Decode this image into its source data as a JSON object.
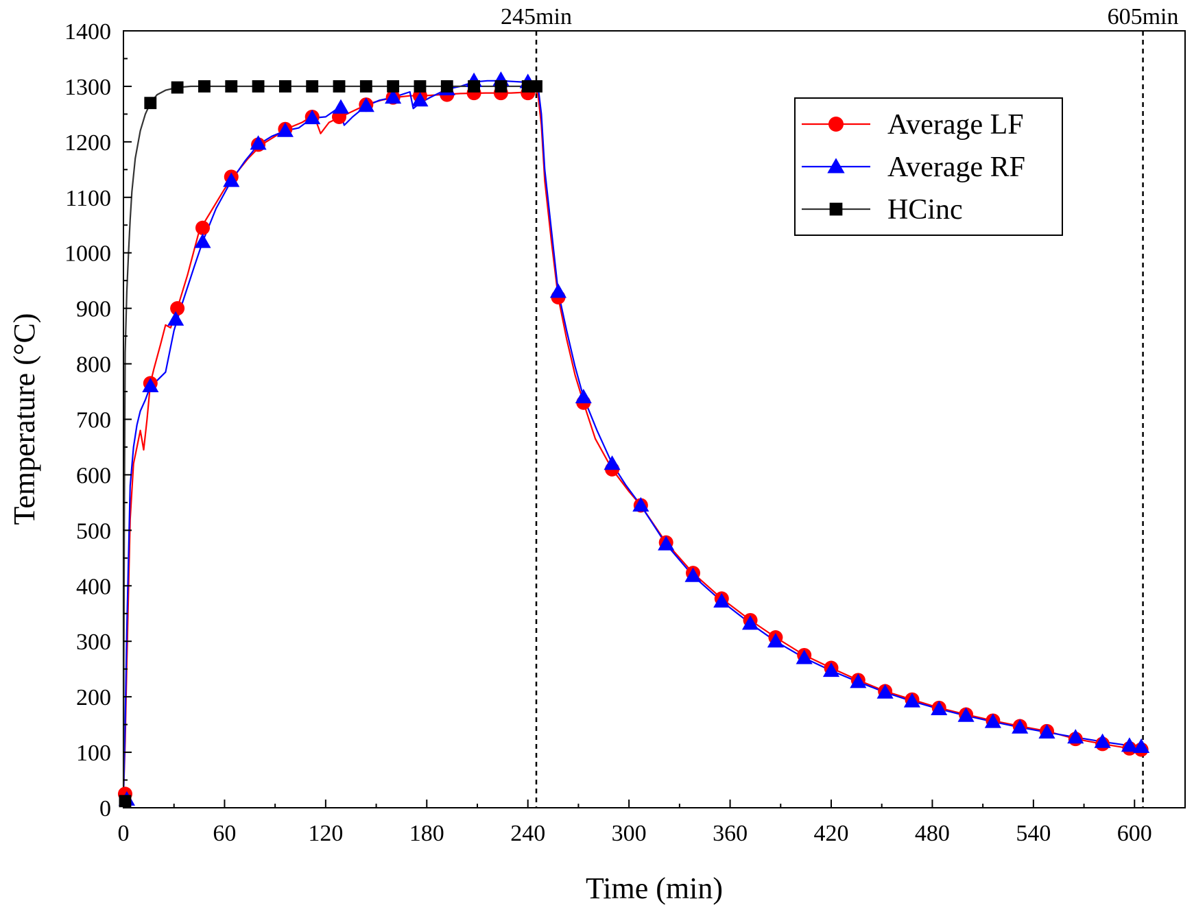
{
  "chart_data": {
    "type": "line",
    "title": "",
    "xlabel": "Time (min)",
    "ylabel": "Temperature (°C)",
    "xlim": [
      0,
      630
    ],
    "ylim": [
      0,
      1400
    ],
    "xticks": [
      0,
      60,
      120,
      180,
      240,
      300,
      360,
      420,
      480,
      540,
      600
    ],
    "yticks": [
      0,
      100,
      200,
      300,
      400,
      500,
      600,
      700,
      800,
      900,
      1000,
      1100,
      1200,
      1300,
      1400
    ],
    "grid": false,
    "legend_position": "top-right",
    "vlines": [
      {
        "x": 245,
        "label": "245min"
      },
      {
        "x": 605,
        "label": "605min"
      }
    ],
    "series": [
      {
        "name": "Average LF",
        "color": "#ff0000",
        "marker": "circle",
        "line": [
          [
            0,
            20
          ],
          [
            1,
            120
          ],
          [
            2,
            260
          ],
          [
            4,
            520
          ],
          [
            6,
            620
          ],
          [
            8,
            650
          ],
          [
            10,
            680
          ],
          [
            12,
            645
          ],
          [
            14,
            700
          ],
          [
            16,
            765
          ],
          [
            18,
            790
          ],
          [
            22,
            835
          ],
          [
            25,
            870
          ],
          [
            28,
            865
          ],
          [
            32,
            900
          ],
          [
            38,
            960
          ],
          [
            45,
            1040
          ],
          [
            52,
            1075
          ],
          [
            60,
            1115
          ],
          [
            66,
            1140
          ],
          [
            74,
            1170
          ],
          [
            82,
            1195
          ],
          [
            90,
            1210
          ],
          [
            98,
            1225
          ],
          [
            106,
            1235
          ],
          [
            113,
            1248
          ],
          [
            117,
            1215
          ],
          [
            122,
            1235
          ],
          [
            129,
            1245
          ],
          [
            136,
            1255
          ],
          [
            145,
            1268
          ],
          [
            153,
            1275
          ],
          [
            161,
            1280
          ],
          [
            170,
            1283
          ],
          [
            178,
            1283
          ],
          [
            188,
            1285
          ],
          [
            200,
            1287
          ],
          [
            215,
            1288
          ],
          [
            230,
            1288
          ],
          [
            244,
            1290
          ],
          [
            245,
            1290
          ],
          [
            246,
            1285
          ],
          [
            248,
            1230
          ],
          [
            250,
            1130
          ],
          [
            254,
            1020
          ],
          [
            258,
            920
          ],
          [
            263,
            845
          ],
          [
            268,
            780
          ],
          [
            273,
            730
          ],
          [
            280,
            665
          ],
          [
            290,
            610
          ],
          [
            300,
            570
          ],
          [
            307,
            545
          ],
          [
            322,
            478
          ],
          [
            338,
            423
          ],
          [
            355,
            377
          ],
          [
            372,
            338
          ],
          [
            387,
            307
          ],
          [
            404,
            275
          ],
          [
            420,
            252
          ],
          [
            436,
            230
          ],
          [
            452,
            210
          ],
          [
            468,
            195
          ],
          [
            484,
            180
          ],
          [
            500,
            168
          ],
          [
            516,
            157
          ],
          [
            532,
            147
          ],
          [
            548,
            138
          ],
          [
            565,
            124
          ],
          [
            581,
            115
          ],
          [
            597,
            107
          ],
          [
            604,
            105
          ]
        ],
        "markers": [
          [
            1,
            25
          ],
          [
            16,
            765
          ],
          [
            32,
            900
          ],
          [
            47,
            1045
          ],
          [
            64,
            1137
          ],
          [
            80,
            1195
          ],
          [
            96,
            1223
          ],
          [
            112,
            1245
          ],
          [
            128,
            1245
          ],
          [
            144,
            1267
          ],
          [
            160,
            1280
          ],
          [
            176,
            1283
          ],
          [
            192,
            1285
          ],
          [
            208,
            1288
          ],
          [
            224,
            1288
          ],
          [
            240,
            1288
          ],
          [
            258,
            920
          ],
          [
            273,
            730
          ],
          [
            290,
            610
          ],
          [
            307,
            545
          ],
          [
            322,
            478
          ],
          [
            338,
            423
          ],
          [
            355,
            377
          ],
          [
            372,
            338
          ],
          [
            387,
            307
          ],
          [
            404,
            275
          ],
          [
            420,
            252
          ],
          [
            436,
            230
          ],
          [
            452,
            210
          ],
          [
            468,
            195
          ],
          [
            484,
            180
          ],
          [
            500,
            168
          ],
          [
            516,
            157
          ],
          [
            532,
            147
          ],
          [
            548,
            138
          ],
          [
            565,
            124
          ],
          [
            581,
            115
          ],
          [
            597,
            107
          ],
          [
            604,
            105
          ]
        ]
      },
      {
        "name": "Average RF",
        "color": "#0000ff",
        "marker": "triangle",
        "line": [
          [
            0,
            15
          ],
          [
            1,
            150
          ],
          [
            2,
            320
          ],
          [
            4,
            580
          ],
          [
            6,
            650
          ],
          [
            8,
            690
          ],
          [
            10,
            715
          ],
          [
            13,
            735
          ],
          [
            16,
            760
          ],
          [
            20,
            770
          ],
          [
            25,
            785
          ],
          [
            30,
            860
          ],
          [
            35,
            910
          ],
          [
            42,
            975
          ],
          [
            47,
            1020
          ],
          [
            55,
            1080
          ],
          [
            64,
            1130
          ],
          [
            72,
            1165
          ],
          [
            80,
            1195
          ],
          [
            88,
            1210
          ],
          [
            96,
            1220
          ],
          [
            104,
            1225
          ],
          [
            112,
            1243
          ],
          [
            120,
            1245
          ],
          [
            128,
            1262
          ],
          [
            131,
            1230
          ],
          [
            136,
            1245
          ],
          [
            144,
            1265
          ],
          [
            152,
            1275
          ],
          [
            160,
            1280
          ],
          [
            170,
            1290
          ],
          [
            172,
            1260
          ],
          [
            176,
            1270
          ],
          [
            182,
            1280
          ],
          [
            192,
            1295
          ],
          [
            200,
            1300
          ],
          [
            208,
            1308
          ],
          [
            216,
            1310
          ],
          [
            224,
            1310
          ],
          [
            236,
            1308
          ],
          [
            244,
            1306
          ],
          [
            245,
            1306
          ],
          [
            246,
            1300
          ],
          [
            248,
            1250
          ],
          [
            250,
            1150
          ],
          [
            254,
            1040
          ],
          [
            258,
            930
          ],
          [
            263,
            860
          ],
          [
            268,
            795
          ],
          [
            273,
            740
          ],
          [
            281,
            680
          ],
          [
            290,
            620
          ],
          [
            298,
            582
          ],
          [
            307,
            545
          ],
          [
            322,
            475
          ],
          [
            338,
            418
          ],
          [
            355,
            372
          ],
          [
            372,
            332
          ],
          [
            387,
            300
          ],
          [
            404,
            270
          ],
          [
            420,
            247
          ],
          [
            436,
            227
          ],
          [
            452,
            208
          ],
          [
            468,
            192
          ],
          [
            484,
            178
          ],
          [
            500,
            166
          ],
          [
            516,
            155
          ],
          [
            532,
            145
          ],
          [
            548,
            136
          ],
          [
            565,
            127
          ],
          [
            581,
            119
          ],
          [
            597,
            112
          ],
          [
            604,
            110
          ]
        ],
        "markers": [
          [
            2,
            15
          ],
          [
            16,
            760
          ],
          [
            31,
            880
          ],
          [
            47,
            1020
          ],
          [
            64,
            1130
          ],
          [
            80,
            1197
          ],
          [
            96,
            1220
          ],
          [
            112,
            1243
          ],
          [
            129,
            1262
          ],
          [
            144,
            1265
          ],
          [
            160,
            1280
          ],
          [
            176,
            1275
          ],
          [
            192,
            1295
          ],
          [
            208,
            1310
          ],
          [
            224,
            1312
          ],
          [
            240,
            1308
          ],
          [
            258,
            930
          ],
          [
            273,
            740
          ],
          [
            290,
            620
          ],
          [
            307,
            545
          ],
          [
            322,
            475
          ],
          [
            338,
            418
          ],
          [
            355,
            372
          ],
          [
            372,
            332
          ],
          [
            387,
            300
          ],
          [
            404,
            270
          ],
          [
            420,
            247
          ],
          [
            436,
            227
          ],
          [
            452,
            208
          ],
          [
            468,
            192
          ],
          [
            484,
            178
          ],
          [
            500,
            166
          ],
          [
            516,
            155
          ],
          [
            532,
            145
          ],
          [
            548,
            136
          ],
          [
            565,
            127
          ],
          [
            581,
            119
          ],
          [
            597,
            112
          ],
          [
            604,
            110
          ]
        ]
      },
      {
        "name": "HCinc",
        "color": "#333333",
        "marker_color": "#000000",
        "marker": "square",
        "line": [
          [
            0,
            20
          ],
          [
            0.5,
            500
          ],
          [
            1,
            820
          ],
          [
            2,
            930
          ],
          [
            3,
            1000
          ],
          [
            4,
            1060
          ],
          [
            5,
            1110
          ],
          [
            7,
            1170
          ],
          [
            10,
            1220
          ],
          [
            13,
            1250
          ],
          [
            16,
            1270
          ],
          [
            20,
            1285
          ],
          [
            25,
            1293
          ],
          [
            32,
            1298
          ],
          [
            40,
            1300
          ],
          [
            245,
            1300
          ]
        ],
        "markers": [
          [
            1,
            12
          ],
          [
            16,
            1270
          ],
          [
            32,
            1298
          ],
          [
            48,
            1300
          ],
          [
            64,
            1300
          ],
          [
            80,
            1300
          ],
          [
            96,
            1300
          ],
          [
            112,
            1300
          ],
          [
            128,
            1300
          ],
          [
            144,
            1300
          ],
          [
            160,
            1300
          ],
          [
            176,
            1300
          ],
          [
            192,
            1300
          ],
          [
            208,
            1300
          ],
          [
            224,
            1300
          ],
          [
            240,
            1300
          ],
          [
            245,
            1300
          ]
        ]
      }
    ]
  }
}
